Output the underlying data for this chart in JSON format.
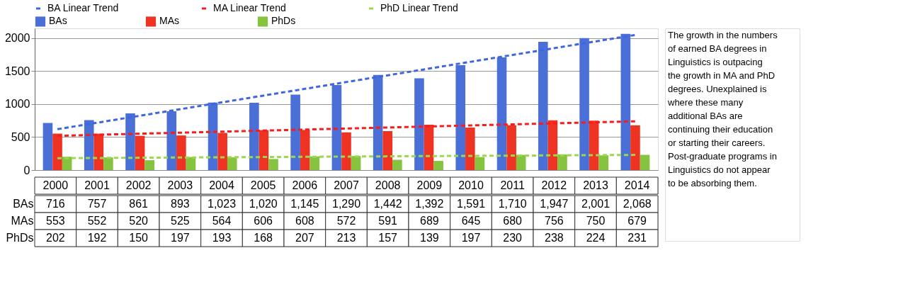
{
  "chart_data": {
    "type": "bar",
    "categories": [
      "2000",
      "2001",
      "2002",
      "2003",
      "2004",
      "2005",
      "2006",
      "2007",
      "2008",
      "2009",
      "2010",
      "2011",
      "2012",
      "2013",
      "2014"
    ],
    "series": [
      {
        "name": "BAs",
        "color": "#4a6fd6",
        "values": [
          716,
          757,
          861,
          893,
          1023,
          1020,
          1145,
          1290,
          1442,
          1392,
          1591,
          1710,
          1947,
          2001,
          2068
        ],
        "value_labels": [
          "716",
          "757",
          "861",
          "893",
          "1,023",
          "1,020",
          "1,145",
          "1,290",
          "1,442",
          "1,392",
          "1,591",
          "1,710",
          "1,947",
          "2,001",
          "2,068"
        ]
      },
      {
        "name": "MAs",
        "color": "#ee3322",
        "values": [
          553,
          552,
          520,
          525,
          564,
          606,
          608,
          572,
          591,
          689,
          645,
          680,
          756,
          750,
          679
        ],
        "value_labels": [
          "553",
          "552",
          "520",
          "525",
          "564",
          "606",
          "608",
          "572",
          "591",
          "689",
          "645",
          "680",
          "756",
          "750",
          "679"
        ]
      },
      {
        "name": "PhDs",
        "color": "#86c440",
        "values": [
          202,
          192,
          150,
          197,
          193,
          168,
          207,
          213,
          157,
          139,
          197,
          230,
          238,
          224,
          231
        ],
        "value_labels": [
          "202",
          "192",
          "150",
          "197",
          "193",
          "168",
          "207",
          "213",
          "157",
          "139",
          "197",
          "230",
          "238",
          "224",
          "231"
        ]
      },
      {
        "name": "BA Linear Trend",
        "type": "line",
        "line_style": "dashed",
        "color": "#3f66e0",
        "values": [
          620,
          null,
          null,
          null,
          null,
          null,
          null,
          null,
          null,
          null,
          null,
          null,
          null,
          null,
          2050
        ]
      },
      {
        "name": "MA Linear Trend",
        "type": "line",
        "line_style": "dashed",
        "color": "#ff1a1a",
        "values": [
          520,
          null,
          null,
          null,
          null,
          null,
          null,
          null,
          null,
          null,
          null,
          null,
          null,
          null,
          740
        ]
      },
      {
        "name": "PhD Linear Trend",
        "type": "line",
        "line_style": "dashed",
        "color": "#9ad84e",
        "values": [
          180,
          null,
          null,
          null,
          null,
          null,
          null,
          null,
          null,
          null,
          null,
          null,
          null,
          null,
          230
        ]
      }
    ],
    "ylim": [
      0,
      2150
    ],
    "yticks": [
      0,
      500,
      1000,
      1500,
      2000
    ],
    "grid": "y",
    "legend": "top",
    "annotations": [
      "The growth in the numbers of earned BA degrees in Linguistics is outpacing the growth in MA and PhD degrees. Unexplained is where these many additional BAs are continuing their education or starting their careers.  Post-graduate programs in Linguistics do not appear to be absorbing them."
    ]
  }
}
